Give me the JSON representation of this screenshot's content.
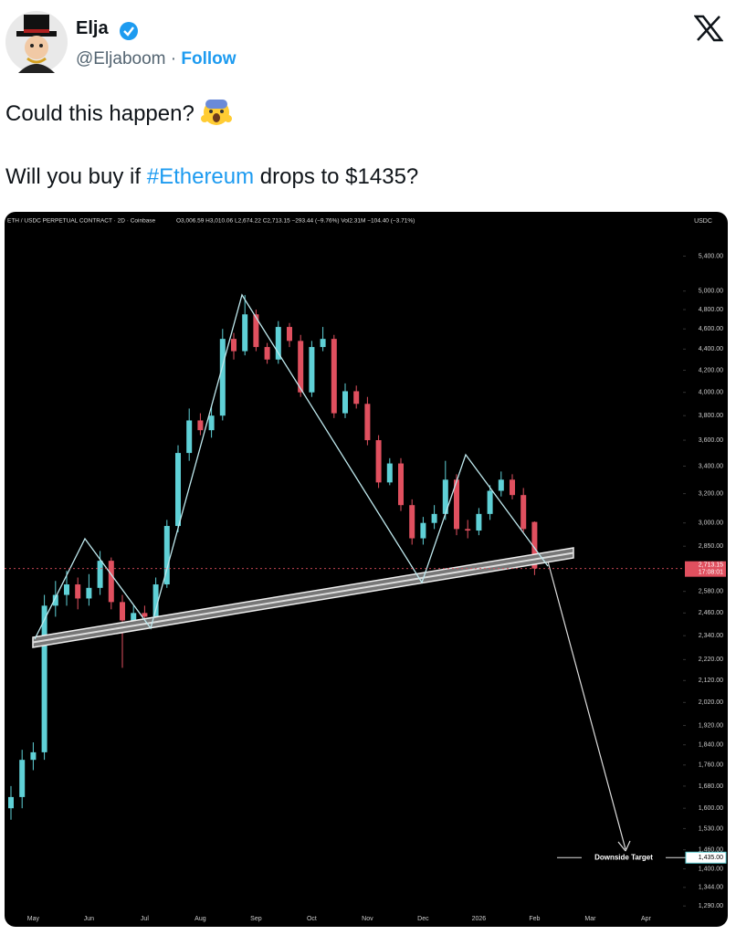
{
  "tweet": {
    "author": {
      "name": "Elja",
      "handle": "@Eljaboom",
      "separator": "·",
      "follow": "Follow"
    },
    "text": {
      "line1": "Could this happen?",
      "line2": [
        "Will you buy if ",
        "#Ethereum",
        " drops to $1435?"
      ]
    }
  },
  "chart_data": {
    "type": "candlestick",
    "title": "ETH / USDC PERPETUAL CONTRACT · 2D · Coinbase",
    "legend_values": "O3,006.59 H3,010.06 L2,674.22 C2,713.15 −293.44 (−9.76%) Vol2.31M −104.40 (−3.71%)",
    "currency": "USDC",
    "categories": [
      null,
      null,
      "May",
      null,
      null,
      null,
      null,
      "Jun",
      null,
      null,
      null,
      null,
      "Jul",
      null,
      null,
      null,
      null,
      "Aug",
      null,
      null,
      null,
      null,
      "Sep",
      null,
      null,
      null,
      null,
      "Oct",
      null,
      null,
      null,
      null,
      "Nov",
      null,
      null,
      null,
      null,
      "Dec",
      null,
      null,
      null,
      null,
      "2026",
      null,
      null,
      null,
      null,
      "Feb",
      null,
      null,
      null,
      null,
      "Mar",
      null,
      null,
      null,
      null,
      "Apr",
      null,
      null
    ],
    "open": [
      1600,
      1640,
      1780,
      1810,
      2500,
      2560,
      2620,
      2540,
      2600,
      2760,
      2520,
      2420,
      2460,
      2440,
      2620,
      2980,
      3500,
      3760,
      3680,
      3800,
      4500,
      4380,
      4750,
      4420,
      4300,
      4620,
      4480,
      4000,
      4420,
      4500,
      3820,
      4010,
      3900,
      3600,
      3280,
      3420,
      3120,
      2900,
      3000,
      3060,
      3300,
      2960,
      2950,
      3060,
      3220,
      3300,
      3190,
      3006.59,
      null,
      null,
      null,
      null,
      null,
      null,
      null,
      null,
      null,
      null,
      null,
      null
    ],
    "high": [
      1680,
      1820,
      1850,
      2560,
      2640,
      2700,
      2660,
      2680,
      2820,
      2780,
      2560,
      2500,
      2500,
      2660,
      3020,
      3560,
      3860,
      3820,
      3880,
      4600,
      4560,
      4956,
      4800,
      4460,
      4680,
      4660,
      4540,
      4480,
      4620,
      4540,
      4080,
      4060,
      3960,
      3640,
      3460,
      3460,
      3160,
      3040,
      3120,
      3440,
      3340,
      3020,
      3100,
      3260,
      3360,
      3340,
      3240,
      3010.06,
      null,
      null,
      null,
      null,
      null,
      null,
      null,
      null,
      null,
      null,
      null,
      null
    ],
    "low": [
      1560,
      1600,
      1740,
      1780,
      2440,
      2500,
      2480,
      2500,
      2560,
      2480,
      2180,
      2380,
      2380,
      2420,
      2600,
      2940,
      3440,
      3640,
      3620,
      3760,
      4300,
      4340,
      4380,
      4260,
      4260,
      4420,
      3960,
      3960,
      4380,
      3780,
      3780,
      3860,
      3560,
      3240,
      3260,
      3080,
      2860,
      2860,
      2960,
      3020,
      2920,
      2900,
      2920,
      3020,
      3180,
      3160,
      2940,
      2674.22,
      null,
      null,
      null,
      null,
      null,
      null,
      null,
      null,
      null,
      null,
      null,
      null
    ],
    "close": [
      1640,
      1780,
      1810,
      2500,
      2560,
      2620,
      2540,
      2600,
      2760,
      2520,
      2420,
      2460,
      2440,
      2620,
      2980,
      3500,
      3760,
      3680,
      3800,
      4500,
      4380,
      4750,
      4420,
      4300,
      4620,
      4480,
      4000,
      4420,
      4500,
      3820,
      4010,
      3900,
      3600,
      3280,
      3420,
      3120,
      2900,
      3000,
      3060,
      3300,
      2960,
      2950,
      3060,
      3220,
      3300,
      3190,
      2960,
      2713.15,
      null,
      null,
      null,
      null,
      null,
      null,
      null,
      null,
      null,
      null,
      null,
      null
    ],
    "colors": {
      "up": "#5fd0d6",
      "down": "#e0505f"
    },
    "log_scale": true,
    "ylim": [
      1270,
      5800
    ],
    "yticks": [
      {
        "value": 5400,
        "label": "5,400.00"
      },
      {
        "value": 5000,
        "label": "5,000.00"
      },
      {
        "value": 4800,
        "label": "4,800.00"
      },
      {
        "value": 4600,
        "label": "4,600.00"
      },
      {
        "value": 4400,
        "label": "4,400.00"
      },
      {
        "value": 4200,
        "label": "4,200.00"
      },
      {
        "value": 4000,
        "label": "4,000.00"
      },
      {
        "value": 3800,
        "label": "3,800.00"
      },
      {
        "value": 3600,
        "label": "3,600.00"
      },
      {
        "value": 3400,
        "label": "3,400.00"
      },
      {
        "value": 3200,
        "label": "3,200.00"
      },
      {
        "value": 3000,
        "label": "3,000.00"
      },
      {
        "value": 2850,
        "label": "2,850.00"
      },
      {
        "value": 2580,
        "label": "2,580.00"
      },
      {
        "value": 2460,
        "label": "2,460.00"
      },
      {
        "value": 2340,
        "label": "2,340.00"
      },
      {
        "value": 2220,
        "label": "2,220.00"
      },
      {
        "value": 2120,
        "label": "2,120.00"
      },
      {
        "value": 2020,
        "label": "2,020.00"
      },
      {
        "value": 1920,
        "label": "1,920.00"
      },
      {
        "value": 1840,
        "label": "1,840.00"
      },
      {
        "value": 1760,
        "label": "1,760.00"
      },
      {
        "value": 1680,
        "label": "1,680.00"
      },
      {
        "value": 1600,
        "label": "1,600.00"
      },
      {
        "value": 1530,
        "label": "1,530.00"
      },
      {
        "value": 1460,
        "label": "1,460.00"
      },
      {
        "value": 1400,
        "label": "1,400.00"
      },
      {
        "value": 1344,
        "label": "1,344.00"
      },
      {
        "value": 1290,
        "label": "1,290.00"
      }
    ],
    "last_price": {
      "value": 2713.15,
      "label": "2,713.15"
    },
    "countdown": "17:08:01",
    "target": {
      "value": 1435,
      "label": "1,435.00",
      "name": "Downside Target"
    }
  }
}
